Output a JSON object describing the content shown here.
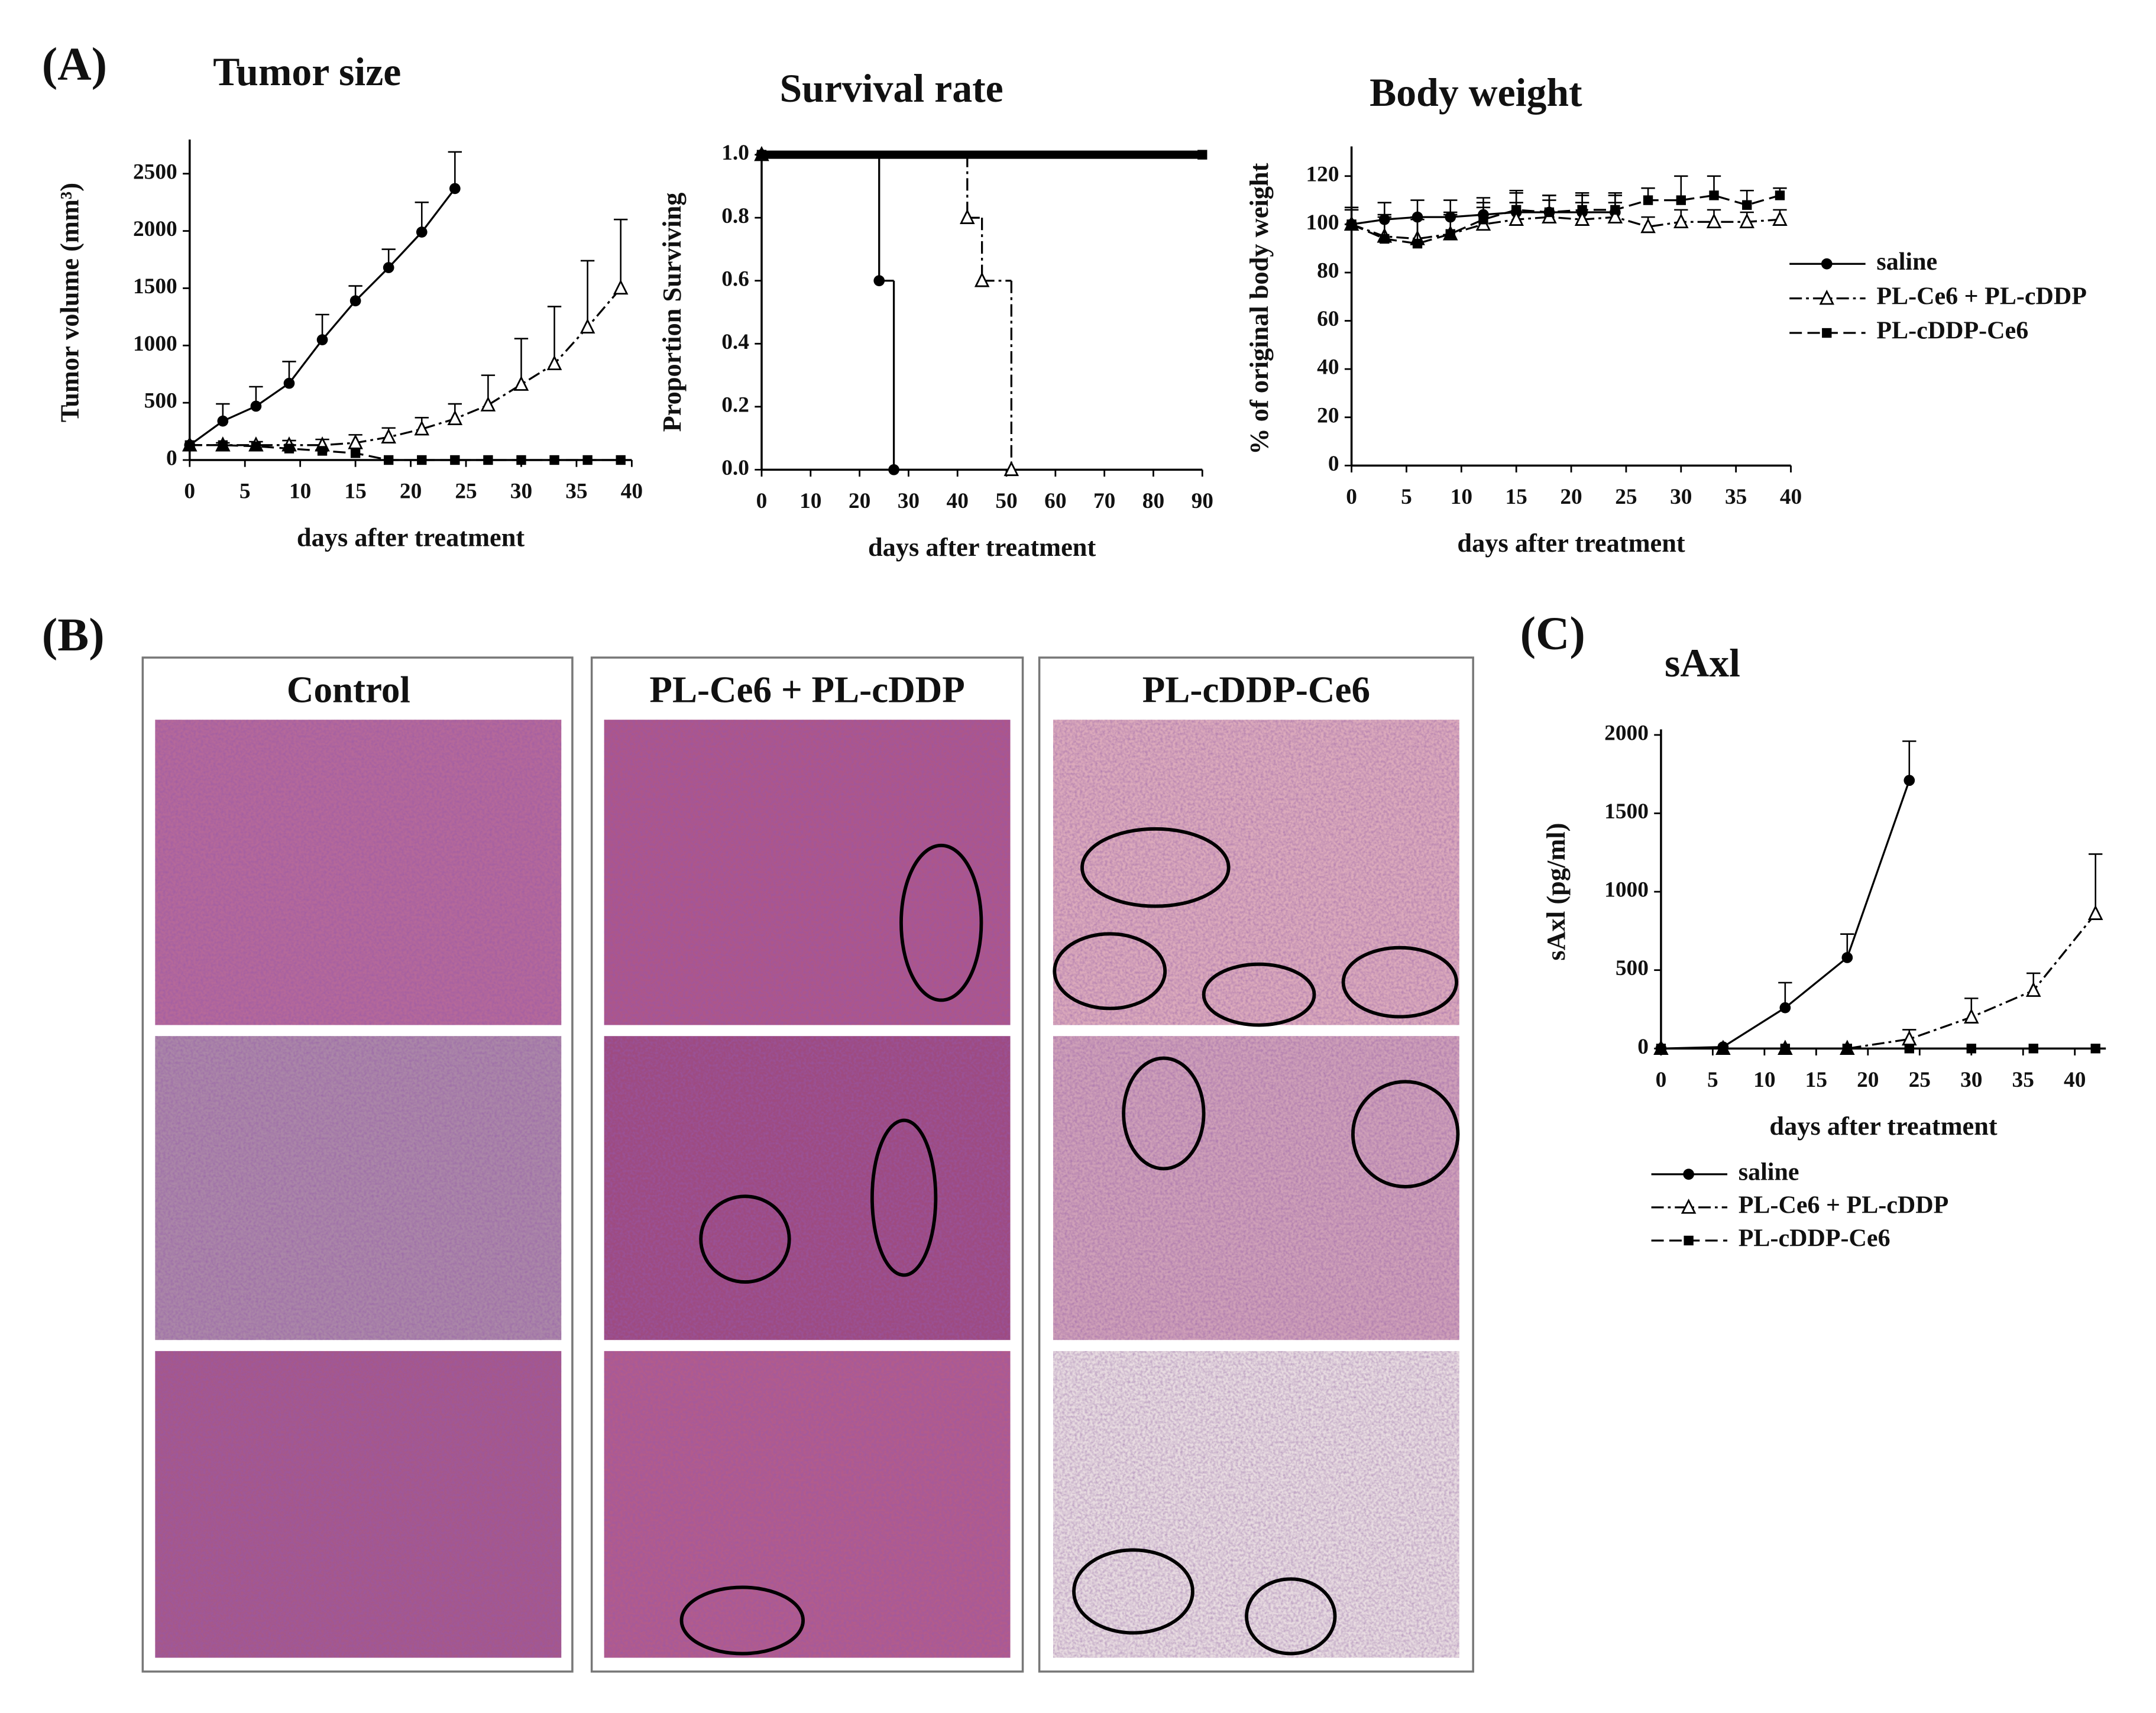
{
  "panel_labels": [
    "(A)",
    "(B)",
    "(C)"
  ],
  "histology": {
    "titles": [
      "Control",
      "PL-Ce6 + PL-cDDP",
      "PL-cDDP-Ce6"
    ]
  },
  "chart_data": [
    {
      "type": "line",
      "title": "Tumor size",
      "xlabel": "days after treatment",
      "ylabel": "Tumor volume (mm³)",
      "xlim": [
        0,
        40
      ],
      "ylim": [
        0,
        2750
      ],
      "xticks": [
        0,
        5,
        10,
        15,
        20,
        25,
        30,
        35,
        40
      ],
      "yticks": [
        0,
        500,
        1000,
        1500,
        2000,
        2500
      ],
      "legend": false,
      "series": [
        {
          "color": "#000000",
          "marker": "circle",
          "line_style": "solid",
          "x": [
            0,
            3,
            6,
            9,
            12,
            15,
            18,
            21,
            24
          ],
          "values": [
            130,
            340,
            470,
            670,
            1050,
            1390,
            1680,
            1990,
            2370
          ],
          "errors": [
            0,
            150,
            170,
            190,
            220,
            130,
            160,
            260,
            320
          ]
        },
        {
          "color": "#000000",
          "marker": "triangle",
          "line_style": "dashdot",
          "x": [
            0,
            3,
            6,
            9,
            12,
            15,
            18,
            21,
            24,
            27,
            30,
            33,
            36,
            39
          ],
          "values": [
            130,
            130,
            130,
            130,
            130,
            150,
            200,
            270,
            360,
            480,
            660,
            840,
            1160,
            1500
          ],
          "errors": [
            0,
            20,
            30,
            40,
            50,
            70,
            80,
            100,
            130,
            260,
            400,
            500,
            580,
            600
          ]
        },
        {
          "color": "#000000",
          "marker": "square",
          "line_style": "dashed",
          "x": [
            0,
            3,
            6,
            9,
            12,
            15,
            18,
            21,
            24,
            27,
            30,
            33,
            36,
            39
          ],
          "values": [
            130,
            130,
            120,
            100,
            80,
            60,
            0,
            0,
            0,
            0,
            0,
            0,
            0,
            0
          ]
        }
      ]
    },
    {
      "type": "step",
      "title": "Survival rate",
      "xlabel": "days after treatment",
      "ylabel": "Proportion Surviving",
      "xlim": [
        0,
        90
      ],
      "ylim": [
        0,
        1
      ],
      "xticks": [
        0,
        10,
        20,
        30,
        40,
        50,
        60,
        70,
        80,
        90
      ],
      "yticks": [
        {
          "value": 0,
          "label": "0.0"
        },
        0.2,
        0.4,
        0.6,
        0.8,
        {
          "value": 1,
          "label": "1.0"
        }
      ],
      "legend": false,
      "series": [
        {
          "color": "#000000",
          "marker": "circle",
          "line_style": "solid",
          "x": [
            0,
            24,
            27
          ],
          "values": [
            1,
            0.6,
            0
          ]
        },
        {
          "color": "#000000",
          "marker": "triangle",
          "line_style": "dashdot",
          "x": [
            0,
            42,
            45,
            51
          ],
          "values": [
            1,
            0.8,
            0.6,
            0
          ]
        },
        {
          "color": "#000000",
          "marker": "square",
          "line_style": "solid",
          "line_width": 6,
          "x": [
            0,
            90
          ],
          "values": [
            1,
            1
          ]
        }
      ]
    },
    {
      "type": "line",
      "title": "Body weight",
      "xlabel": "days after treatment",
      "ylabel": "% of original body weight",
      "xlim": [
        0,
        40
      ],
      "ylim": [
        0,
        130
      ],
      "xticks": [
        0,
        5,
        10,
        15,
        20,
        25,
        30,
        35,
        40
      ],
      "yticks": [
        0,
        20,
        40,
        60,
        80,
        100,
        120
      ],
      "legend": true,
      "series": [
        {
          "name": "saline",
          "color": "#000000",
          "marker": "circle",
          "line_style": "solid",
          "x": [
            0,
            3,
            6,
            9,
            12,
            15,
            18,
            21,
            24
          ],
          "values": [
            100,
            102,
            103,
            103,
            104,
            105,
            105,
            105,
            105
          ],
          "errors": [
            7,
            7,
            7,
            7,
            7,
            8,
            7,
            7,
            7
          ]
        },
        {
          "name": "PL-Ce6 + PL-cDDP",
          "color": "#000000",
          "marker": "triangle",
          "line_style": "dashdot",
          "x": [
            0,
            3,
            6,
            9,
            12,
            15,
            18,
            21,
            24,
            27,
            30,
            33,
            36,
            39
          ],
          "values": [
            100,
            95,
            94,
            96,
            100,
            102,
            103,
            102,
            103,
            99,
            101,
            101,
            101,
            102
          ],
          "errors": [
            6,
            9,
            9,
            8,
            7,
            7,
            7,
            7,
            6,
            4,
            5,
            5,
            4,
            4
          ]
        },
        {
          "name": "PL-cDDP-Ce6",
          "color": "#000000",
          "marker": "square",
          "line_style": "dashed",
          "x": [
            0,
            3,
            6,
            9,
            12,
            15,
            18,
            21,
            24,
            27,
            30,
            33,
            36,
            39
          ],
          "values": [
            100,
            94,
            92,
            96,
            102,
            106,
            105,
            106,
            106,
            110,
            110,
            112,
            108,
            112
          ],
          "errors": [
            6,
            9,
            10,
            9,
            7,
            8,
            7,
            7,
            7,
            5,
            10,
            8,
            6,
            3
          ]
        }
      ]
    },
    {
      "type": "line",
      "title": "sAxl",
      "xlabel": "days after treatment",
      "ylabel": "sAxl (pg/ml)",
      "xlim": [
        0,
        43
      ],
      "ylim": [
        0,
        2000
      ],
      "xticks": [
        0,
        5,
        10,
        15,
        20,
        25,
        30,
        35,
        40
      ],
      "yticks": [
        0,
        500,
        1000,
        1500,
        2000
      ],
      "legend": true,
      "series": [
        {
          "name": "saline",
          "color": "#000000",
          "marker": "circle",
          "line_style": "solid",
          "x": [
            0,
            6,
            12,
            18,
            24
          ],
          "values": [
            0,
            10,
            260,
            580,
            1710
          ],
          "errors": [
            0,
            0,
            160,
            150,
            250
          ]
        },
        {
          "name": "PL-Ce6 + PL-cDDP",
          "color": "#000000",
          "marker": "triangle",
          "line_style": "dashdot",
          "x": [
            0,
            6,
            12,
            18,
            24,
            30,
            36,
            42
          ],
          "values": [
            0,
            0,
            0,
            0,
            60,
            200,
            370,
            860
          ],
          "errors": [
            0,
            0,
            0,
            0,
            60,
            120,
            110,
            380
          ]
        },
        {
          "name": "PL-cDDP-Ce6",
          "color": "#000000",
          "marker": "square",
          "line_style": "dashed",
          "x": [
            0,
            6,
            12,
            18,
            24,
            30,
            36,
            42
          ],
          "values": [
            0,
            0,
            0,
            0,
            0,
            0,
            0,
            0
          ]
        }
      ]
    }
  ]
}
